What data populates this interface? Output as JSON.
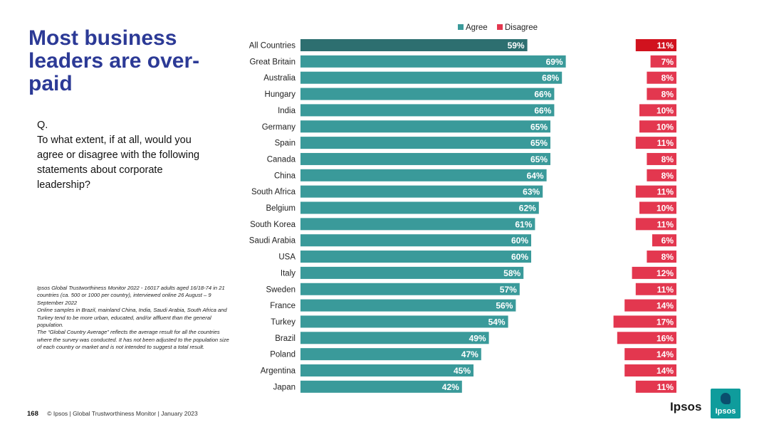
{
  "title": "Most business leaders are over-paid",
  "question": {
    "label": "Q.",
    "text": "To what extent, if at all, would you agree or disagree with the following statements about corporate leadership?"
  },
  "notes": [
    "Ipsos Global Trustworthiness Monitor 2022 - 16017 adults aged 16/18-74 in 21 countries (ca. 500 or 1000 per country), interviewed online 26 August – 9 September 2022",
    "Online samples in Brazil, mainland China, India, Saudi Arabia, South Africa and Turkey tend to be more urban, educated, and/or affluent than the general population.",
    "The “Global Country Average” reflects the average result for all the countries where the survey was conducted. It has not been adjusted to the population size of each country or market and is not intended to suggest a total result."
  ],
  "footer": {
    "page_number": "168",
    "text": "© Ipsos | Global Trustworthiness Monitor | January 2023"
  },
  "brand": {
    "wordmark": "Ipsos",
    "logo_text": "Ipsos"
  },
  "colors": {
    "agree": "#3a9a9a",
    "agree_highlight": "#2d6f70",
    "disagree": "#e3374f",
    "disagree_highlight": "#d1121e",
    "title": "#2c3a96"
  },
  "chart_data": {
    "type": "bar",
    "orientation": "horizontal",
    "legend_position": "top",
    "categories": [
      "All Countries",
      "Great Britain",
      "Australia",
      "Hungary",
      "India",
      "Germany",
      "Spain",
      "Canada",
      "China",
      "South Africa",
      "Belgium",
      "South Korea",
      "Saudi Arabia",
      "USA",
      "Italy",
      "Sweden",
      "France",
      "Turkey",
      "Brazil",
      "Poland",
      "Argentina",
      "Japan"
    ],
    "series": [
      {
        "name": "Agree",
        "values": [
          59,
          69,
          68,
          66,
          66,
          65,
          65,
          65,
          64,
          63,
          62,
          61,
          60,
          60,
          58,
          57,
          56,
          54,
          49,
          47,
          45,
          42
        ]
      },
      {
        "name": "Disagree",
        "values": [
          11,
          7,
          8,
          8,
          10,
          10,
          11,
          8,
          8,
          11,
          10,
          11,
          6,
          8,
          12,
          11,
          14,
          17,
          16,
          14,
          14,
          11
        ]
      }
    ],
    "value_suffix": "%",
    "highlight_category": "All Countries"
  }
}
